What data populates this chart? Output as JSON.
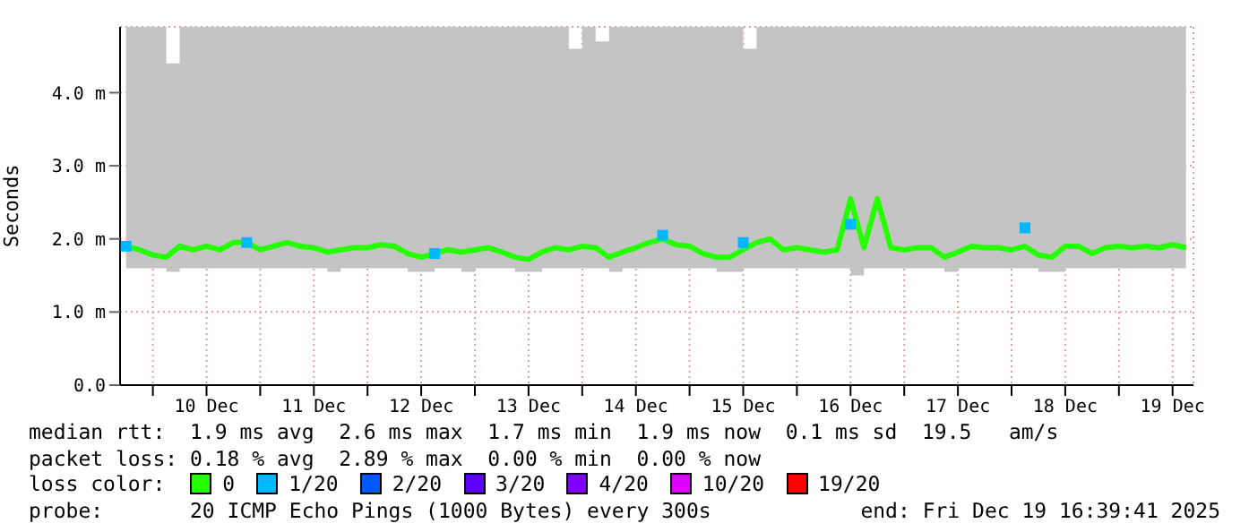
{
  "chart_data": {
    "type": "line",
    "ylabel": "Seconds",
    "ylim": [
      0,
      4.9
    ],
    "yticks": [
      {
        "value": 0,
        "label": "0.0"
      },
      {
        "value": 1,
        "label": "1.0 m"
      },
      {
        "value": 2,
        "label": "2.0 m"
      },
      {
        "value": 3,
        "label": "3.0 m"
      },
      {
        "value": 4,
        "label": "4.0 m"
      }
    ],
    "xlim": [
      "2025-12-09T16:40",
      "2025-12-19T16:40"
    ],
    "xticks": [
      {
        "value": "2025-12-10T00:00",
        "label": null
      },
      {
        "value": "2025-12-10T12:00",
        "label": "10 Dec"
      },
      {
        "value": "2025-12-11T00:00",
        "label": null
      },
      {
        "value": "2025-12-11T12:00",
        "label": "11 Dec"
      },
      {
        "value": "2025-12-12T00:00",
        "label": null
      },
      {
        "value": "2025-12-12T12:00",
        "label": "12 Dec"
      },
      {
        "value": "2025-12-13T00:00",
        "label": null
      },
      {
        "value": "2025-12-13T12:00",
        "label": "13 Dec"
      },
      {
        "value": "2025-12-14T00:00",
        "label": null
      },
      {
        "value": "2025-12-14T12:00",
        "label": "14 Dec"
      },
      {
        "value": "2025-12-15T00:00",
        "label": null
      },
      {
        "value": "2025-12-15T12:00",
        "label": "15 Dec"
      },
      {
        "value": "2025-12-16T00:00",
        "label": null
      },
      {
        "value": "2025-12-16T12:00",
        "label": "16 Dec"
      },
      {
        "value": "2025-12-17T00:00",
        "label": null
      },
      {
        "value": "2025-12-17T12:00",
        "label": "17 Dec"
      },
      {
        "value": "2025-12-18T00:00",
        "label": null
      },
      {
        "value": "2025-12-18T12:00",
        "label": "18 Dec"
      },
      {
        "value": "2025-12-19T00:00",
        "label": null
      },
      {
        "value": "2025-12-19T12:00",
        "label": "19 Dec"
      }
    ],
    "x": [
      "2025-12-09T18:00",
      "2025-12-09T21:00",
      "2025-12-10T00:00",
      "2025-12-10T03:00",
      "2025-12-10T06:00",
      "2025-12-10T09:00",
      "2025-12-10T12:00",
      "2025-12-10T15:00",
      "2025-12-10T18:00",
      "2025-12-10T21:00",
      "2025-12-11T00:00",
      "2025-12-11T03:00",
      "2025-12-11T06:00",
      "2025-12-11T09:00",
      "2025-12-11T12:00",
      "2025-12-11T15:00",
      "2025-12-11T18:00",
      "2025-12-11T21:00",
      "2025-12-12T00:00",
      "2025-12-12T03:00",
      "2025-12-12T06:00",
      "2025-12-12T09:00",
      "2025-12-12T12:00",
      "2025-12-12T15:00",
      "2025-12-12T18:00",
      "2025-12-12T21:00",
      "2025-12-13T00:00",
      "2025-12-13T03:00",
      "2025-12-13T06:00",
      "2025-12-13T09:00",
      "2025-12-13T12:00",
      "2025-12-13T15:00",
      "2025-12-13T18:00",
      "2025-12-13T21:00",
      "2025-12-14T00:00",
      "2025-12-14T03:00",
      "2025-12-14T06:00",
      "2025-12-14T09:00",
      "2025-12-14T12:00",
      "2025-12-14T15:00",
      "2025-12-14T18:00",
      "2025-12-14T21:00",
      "2025-12-15T00:00",
      "2025-12-15T03:00",
      "2025-12-15T06:00",
      "2025-12-15T09:00",
      "2025-12-15T12:00",
      "2025-12-15T15:00",
      "2025-12-15T18:00",
      "2025-12-15T21:00",
      "2025-12-16T00:00",
      "2025-12-16T03:00",
      "2025-12-16T06:00",
      "2025-12-16T09:00",
      "2025-12-16T12:00",
      "2025-12-16T15:00",
      "2025-12-16T18:00",
      "2025-12-16T21:00",
      "2025-12-17T00:00",
      "2025-12-17T03:00",
      "2025-12-17T06:00",
      "2025-12-17T09:00",
      "2025-12-17T12:00",
      "2025-12-17T15:00",
      "2025-12-17T18:00",
      "2025-12-17T21:00",
      "2025-12-18T00:00",
      "2025-12-18T03:00",
      "2025-12-18T06:00",
      "2025-12-18T09:00",
      "2025-12-18T12:00",
      "2025-12-18T15:00",
      "2025-12-18T18:00",
      "2025-12-18T21:00",
      "2025-12-19T00:00",
      "2025-12-19T03:00",
      "2025-12-19T06:00",
      "2025-12-19T09:00",
      "2025-12-19T12:00",
      "2025-12-19T15:00"
    ],
    "series": [
      {
        "name": "0",
        "color": "#26ff00",
        "values": [
          1.9,
          1.85,
          1.78,
          1.75,
          1.9,
          1.85,
          1.9,
          1.85,
          1.95,
          1.95,
          1.85,
          1.9,
          1.95,
          1.9,
          1.88,
          1.82,
          1.85,
          1.88,
          1.88,
          1.92,
          1.9,
          1.8,
          1.75,
          1.8,
          1.85,
          1.82,
          1.85,
          1.88,
          1.82,
          1.75,
          1.72,
          1.82,
          1.88,
          1.85,
          1.9,
          1.88,
          1.75,
          1.82,
          1.88,
          1.95,
          2.0,
          1.92,
          1.9,
          1.8,
          1.75,
          1.75,
          1.85,
          1.95,
          2.0,
          1.85,
          1.88,
          1.85,
          1.82,
          1.85,
          2.55,
          1.88,
          2.55,
          1.88,
          1.85,
          1.88,
          1.88,
          1.75,
          1.82,
          1.9,
          1.88,
          1.88,
          1.85,
          1.9,
          1.78,
          1.75,
          1.9,
          1.9,
          1.8,
          1.88,
          1.9,
          1.88,
          1.9,
          1.88,
          1.92,
          1.88
        ],
        "lower": [
          1.6,
          1.6,
          1.6,
          1.55,
          1.6,
          1.6,
          1.6,
          1.6,
          1.6,
          1.6,
          1.6,
          1.6,
          1.6,
          1.6,
          1.6,
          1.55,
          1.6,
          1.6,
          1.6,
          1.6,
          1.6,
          1.55,
          1.55,
          1.6,
          1.6,
          1.55,
          1.6,
          1.6,
          1.6,
          1.55,
          1.55,
          1.6,
          1.6,
          1.6,
          1.6,
          1.6,
          1.55,
          1.6,
          1.6,
          1.6,
          1.6,
          1.6,
          1.6,
          1.6,
          1.55,
          1.55,
          1.6,
          1.6,
          1.6,
          1.6,
          1.6,
          1.6,
          1.6,
          1.6,
          1.5,
          1.6,
          1.6,
          1.6,
          1.6,
          1.6,
          1.6,
          1.55,
          1.6,
          1.6,
          1.6,
          1.6,
          1.6,
          1.6,
          1.55,
          1.55,
          1.6,
          1.6,
          1.6,
          1.6,
          1.6,
          1.6,
          1.6,
          1.6,
          1.6,
          1.6
        ],
        "upper": [
          4.9,
          4.9,
          4.9,
          4.4,
          4.9,
          4.9,
          4.9,
          4.9,
          4.9,
          4.9,
          4.9,
          4.9,
          4.9,
          4.9,
          4.9,
          4.9,
          4.9,
          4.9,
          4.9,
          4.9,
          4.9,
          4.9,
          4.9,
          4.9,
          4.9,
          4.9,
          4.9,
          4.9,
          4.9,
          4.9,
          4.9,
          4.9,
          4.9,
          4.6,
          4.9,
          4.7,
          4.9,
          4.9,
          4.9,
          4.9,
          4.9,
          4.9,
          4.9,
          4.9,
          4.9,
          4.9,
          4.6,
          4.9,
          4.9,
          4.9,
          4.9,
          4.9,
          4.9,
          4.9,
          4.9,
          4.9,
          4.9,
          4.9,
          4.9,
          4.9,
          4.9,
          4.9,
          4.9,
          4.9,
          4.9,
          4.9,
          4.9,
          4.9,
          4.9,
          4.9,
          4.9,
          4.9,
          4.9,
          4.9,
          4.9,
          4.9,
          4.9,
          4.9,
          4.9,
          4.9
        ]
      },
      {
        "name": "1/20",
        "type": "scatter",
        "marker": "square",
        "color": "#00b8ff",
        "x": [
          "2025-12-09T18:00",
          "2025-12-10T21:00",
          "2025-12-12T15:00",
          "2025-12-14T18:00",
          "2025-12-15T12:00",
          "2025-12-16T12:00",
          "2025-12-18T03:00"
        ],
        "values": [
          1.9,
          1.95,
          1.8,
          2.05,
          1.95,
          2.2,
          2.15
        ]
      },
      {
        "name": "2/20",
        "type": "scatter",
        "color": "#0059ff",
        "values": [
          null,
          null,
          null,
          null,
          null,
          null,
          null,
          null,
          null,
          null,
          null,
          null,
          null,
          null,
          null,
          null,
          null,
          null,
          null,
          null,
          null,
          null,
          null,
          null,
          null,
          null,
          null,
          null,
          null,
          null,
          null,
          null,
          null,
          null,
          null,
          null,
          null,
          null,
          null,
          null,
          null,
          null,
          null,
          null,
          null,
          null,
          null,
          null,
          null,
          null,
          null,
          null,
          null,
          null,
          null,
          null,
          null,
          null,
          null,
          null,
          null,
          null,
          null,
          null,
          null,
          null,
          null,
          null,
          null,
          null,
          null,
          null,
          null,
          null,
          null,
          null,
          null,
          null,
          null,
          null
        ]
      },
      {
        "name": "3/20",
        "type": "scatter",
        "color": "#5e00ff",
        "values": [
          null,
          null,
          null,
          null,
          null,
          null,
          null,
          null,
          null,
          null,
          null,
          null,
          null,
          null,
          null,
          null,
          null,
          null,
          null,
          null,
          null,
          null,
          null,
          null,
          null,
          null,
          null,
          null,
          null,
          null,
          null,
          null,
          null,
          null,
          null,
          null,
          null,
          null,
          null,
          null,
          null,
          null,
          null,
          null,
          null,
          null,
          null,
          null,
          null,
          null,
          null,
          null,
          null,
          null,
          null,
          null,
          null,
          null,
          null,
          null,
          null,
          null,
          null,
          null,
          null,
          null,
          null,
          null,
          null,
          null,
          null,
          null,
          null,
          null,
          null,
          null,
          null,
          null,
          null,
          null
        ]
      },
      {
        "name": "4/20",
        "type": "scatter",
        "color": "#7e00ff",
        "values": [
          null,
          null,
          null,
          null,
          null,
          null,
          null,
          null,
          null,
          null,
          null,
          null,
          null,
          null,
          null,
          null,
          null,
          null,
          null,
          null,
          null,
          null,
          null,
          null,
          null,
          null,
          null,
          null,
          null,
          null,
          null,
          null,
          null,
          null,
          null,
          null,
          null,
          null,
          null,
          null,
          null,
          null,
          null,
          null,
          null,
          null,
          null,
          null,
          null,
          null,
          null,
          null,
          null,
          null,
          null,
          null,
          null,
          null,
          null,
          null,
          null,
          null,
          null,
          null,
          null,
          null,
          null,
          null,
          null,
          null,
          null,
          null,
          null,
          null,
          null,
          null,
          null,
          null,
          null,
          null
        ]
      },
      {
        "name": "10/20",
        "type": "scatter",
        "color": "#dd00ff",
        "values": [
          null,
          null,
          null,
          null,
          null,
          null,
          null,
          null,
          null,
          null,
          null,
          null,
          null,
          null,
          null,
          null,
          null,
          null,
          null,
          null,
          null,
          null,
          null,
          null,
          null,
          null,
          null,
          null,
          null,
          null,
          null,
          null,
          null,
          null,
          null,
          null,
          null,
          null,
          null,
          null,
          null,
          null,
          null,
          null,
          null,
          null,
          null,
          null,
          null,
          null,
          null,
          null,
          null,
          null,
          null,
          null,
          null,
          null,
          null,
          null,
          null,
          null,
          null,
          null,
          null,
          null,
          null,
          null,
          null,
          null,
          null,
          null,
          null,
          null,
          null,
          null,
          null,
          null,
          null,
          null
        ]
      },
      {
        "name": "19/20",
        "type": "scatter",
        "color": "#ff0000",
        "values": [
          null,
          null,
          null,
          null,
          null,
          null,
          null,
          null,
          null,
          null,
          null,
          null,
          null,
          null,
          null,
          null,
          null,
          null,
          null,
          null,
          null,
          null,
          null,
          null,
          null,
          null,
          null,
          null,
          null,
          null,
          null,
          null,
          null,
          null,
          null,
          null,
          null,
          null,
          null,
          null,
          null,
          null,
          null,
          null,
          null,
          null,
          null,
          null,
          null,
          null,
          null,
          null,
          null,
          null,
          null,
          null,
          null,
          null,
          null,
          null,
          null,
          null,
          null,
          null,
          null,
          null,
          null,
          null,
          null,
          null,
          null,
          null,
          null,
          null,
          null,
          null,
          null,
          null,
          null,
          null
        ]
      }
    ],
    "grid": true,
    "legend": "bottom",
    "annotations": [
      "median rtt:  1.9 ms avg  2.6 ms max  1.7 ms min  1.9 ms now  0.1 ms sd  19.5   am/s",
      "packet loss: 0.18 % avg  2.89 % max  0.00 % min  0.00 % now",
      "loss color:",
      "probe:       20 ICMP Echo Pings (1000 Bytes) every 300s",
      "end: Fri Dec 19 16:39:41 2025"
    ]
  }
}
